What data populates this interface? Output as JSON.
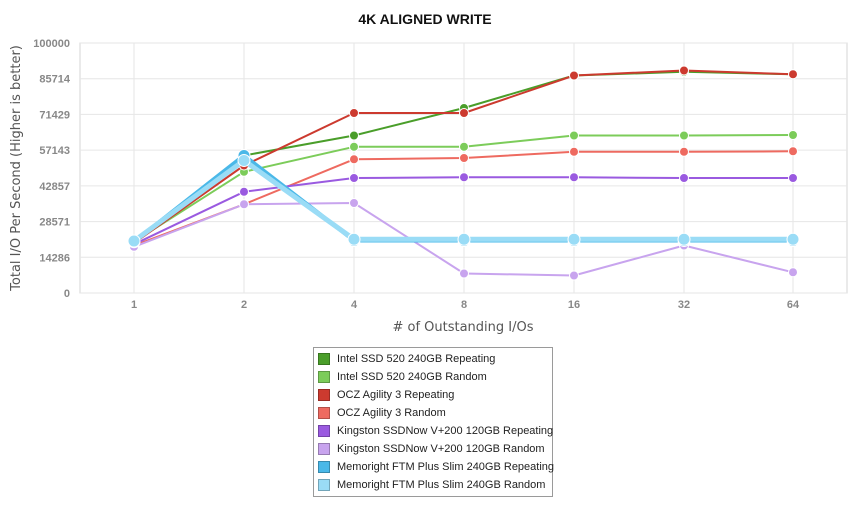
{
  "chart_data": {
    "type": "line",
    "title": "4K ALIGNED WRITE",
    "xlabel": "# of Outstanding I/Os",
    "ylabel": "Total I/O Per Second (Higher is better)",
    "categories": [
      "1",
      "2",
      "4",
      "8",
      "16",
      "32",
      "64"
    ],
    "yticks": [
      "0",
      "14286",
      "28571",
      "42857",
      "57143",
      "71429",
      "85714",
      "100000"
    ],
    "ylim": [
      0,
      100000
    ],
    "grid": true,
    "legend_position": "bottom-center",
    "series": [
      {
        "name": "Intel SSD 520 240GB Repeating",
        "color": "#4a9e2a",
        "values": [
          20500,
          55000,
          63000,
          74000,
          87000,
          88500,
          87500
        ]
      },
      {
        "name": "Intel SSD 520 240GB Random",
        "color": "#7ccc5a",
        "values": [
          20500,
          48500,
          58500,
          58500,
          63000,
          63000,
          63200
        ]
      },
      {
        "name": "OCZ Agility 3 Repeating",
        "color": "#cc3a2f",
        "values": [
          20000,
          51000,
          72000,
          72000,
          87000,
          89000,
          87500
        ]
      },
      {
        "name": "OCZ Agility 3 Random",
        "color": "#ee6a60",
        "values": [
          19000,
          35500,
          53500,
          54000,
          56500,
          56500,
          56700
        ]
      },
      {
        "name": "Kingston SSDNow V+200 120GB Repeating",
        "color": "#9a5ae0",
        "values": [
          19500,
          40500,
          46000,
          46300,
          46300,
          46000,
          46000
        ]
      },
      {
        "name": "Kingston SSDNow V+200 120GB Random",
        "color": "#c8a4ee",
        "values": [
          18500,
          35500,
          36000,
          7800,
          7000,
          19000,
          8300
        ]
      },
      {
        "name": "Memoright FTM Plus Slim 240GB Repeating",
        "color": "#4ab8e8",
        "values": [
          20500,
          55000,
          21000,
          21000,
          21000,
          21000,
          21000
        ]
      },
      {
        "name": "Memoright FTM Plus Slim 240GB Random",
        "color": "#9adcf6",
        "values": [
          20800,
          53000,
          21500,
          21500,
          21500,
          21500,
          21500
        ]
      }
    ]
  }
}
